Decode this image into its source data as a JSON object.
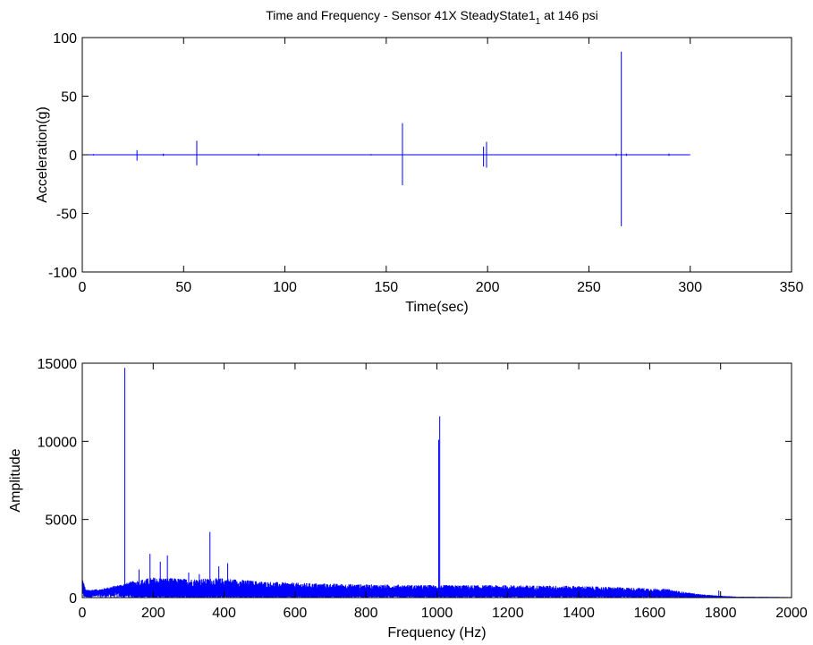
{
  "title_main": "Time and Frequency - Sensor 41X SteadyState1",
  "title_sub": "1",
  "title_tail": " at 146 psi",
  "chart_data": [
    {
      "type": "line",
      "xlabel": "Time(sec)",
      "ylabel": "Acceleration(g)",
      "xlim": [
        0,
        350
      ],
      "ylim": [
        -100,
        100
      ],
      "xticks": [
        0,
        50,
        100,
        150,
        200,
        250,
        300,
        350
      ],
      "yticks": [
        -100,
        -50,
        0,
        50,
        100
      ],
      "xtick_labels": [
        "0",
        "50",
        "100",
        "150",
        "200",
        "250",
        "300",
        "350"
      ],
      "ytick_labels": [
        "-100",
        "-50",
        "0",
        "50",
        "100"
      ],
      "grid": false,
      "series": [
        {
          "color": "#0000ff",
          "x_range": [
            0,
            300
          ],
          "baseline": 0,
          "spikes": [
            {
              "x": 5.5,
              "max": 0.6,
              "min": -0.6
            },
            {
              "x": 27,
              "max": 4,
              "min": -5
            },
            {
              "x": 40,
              "max": 1,
              "min": -1
            },
            {
              "x": 56.5,
              "max": 12,
              "min": -9
            },
            {
              "x": 87,
              "max": 1,
              "min": -1
            },
            {
              "x": 142.5,
              "max": 0.6,
              "min": -0.6
            },
            {
              "x": 158,
              "max": 27,
              "min": -26
            },
            {
              "x": 198,
              "max": 7,
              "min": -10
            },
            {
              "x": 199.5,
              "max": 11,
              "min": -11
            },
            {
              "x": 263.5,
              "max": 1,
              "min": -1
            },
            {
              "x": 266,
              "max": 88,
              "min": -61
            },
            {
              "x": 268.5,
              "max": 1,
              "min": -1
            },
            {
              "x": 289.5,
              "max": 1,
              "min": -1
            }
          ]
        }
      ]
    },
    {
      "type": "line",
      "xlabel": "Frequency (Hz)",
      "ylabel": "Amplitude",
      "xlim": [
        0,
        2000
      ],
      "ylim": [
        0,
        15000
      ],
      "xticks": [
        0,
        200,
        400,
        600,
        800,
        1000,
        1200,
        1400,
        1600,
        1800,
        2000
      ],
      "yticks": [
        0,
        5000,
        10000,
        15000
      ],
      "xtick_labels": [
        "0",
        "200",
        "400",
        "600",
        "800",
        "1000",
        "1200",
        "1400",
        "1600",
        "1800",
        "2000"
      ],
      "ytick_labels": [
        "0",
        "5000",
        "10000",
        "15000"
      ],
      "grid": false,
      "series": [
        {
          "color": "#0000ff",
          "envelope": [
            {
              "x": 0,
              "high": 1300,
              "low": 400
            },
            {
              "x": 10,
              "high": 500,
              "low": 150
            },
            {
              "x": 50,
              "high": 550,
              "low": 250
            },
            {
              "x": 100,
              "high": 800,
              "low": 350
            },
            {
              "x": 150,
              "high": 1100,
              "low": 150
            },
            {
              "x": 200,
              "high": 1300,
              "low": 100
            },
            {
              "x": 300,
              "high": 1200,
              "low": 100
            },
            {
              "x": 400,
              "high": 1250,
              "low": 100
            },
            {
              "x": 500,
              "high": 1050,
              "low": 100
            },
            {
              "x": 600,
              "high": 950,
              "low": 100
            },
            {
              "x": 800,
              "high": 850,
              "low": 100
            },
            {
              "x": 1000,
              "high": 800,
              "low": 100
            },
            {
              "x": 1200,
              "high": 800,
              "low": 100
            },
            {
              "x": 1400,
              "high": 750,
              "low": 100
            },
            {
              "x": 1600,
              "high": 600,
              "low": 100
            },
            {
              "x": 1650,
              "high": 550,
              "low": 100
            },
            {
              "x": 1700,
              "high": 350,
              "low": 60
            },
            {
              "x": 1750,
              "high": 200,
              "low": 30
            },
            {
              "x": 1800,
              "high": 120,
              "low": 20
            },
            {
              "x": 1850,
              "high": 60,
              "low": 10
            },
            {
              "x": 2000,
              "high": 40,
              "low": 0
            }
          ],
          "peaks": [
            {
              "x": 120,
              "y": 14700
            },
            {
              "x": 160,
              "y": 1800
            },
            {
              "x": 191,
              "y": 2800
            },
            {
              "x": 220,
              "y": 2300
            },
            {
              "x": 240,
              "y": 2700
            },
            {
              "x": 300,
              "y": 1600
            },
            {
              "x": 330,
              "y": 1500
            },
            {
              "x": 360,
              "y": 4200
            },
            {
              "x": 385,
              "y": 2000
            },
            {
              "x": 410,
              "y": 2200
            },
            {
              "x": 1008,
              "y": 11600
            },
            {
              "x": 1005,
              "y": 10100
            },
            {
              "x": 1795,
              "y": 450
            }
          ]
        }
      ]
    }
  ]
}
